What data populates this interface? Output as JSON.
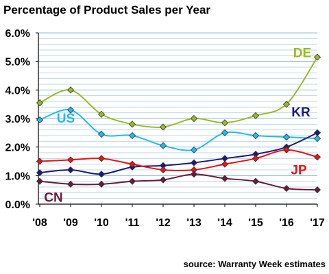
{
  "chart_data": {
    "type": "line",
    "title": "Percentage of Product Sales per Year",
    "source": "source: Warranty Week estimates",
    "categories": [
      "'08",
      "'09",
      "'10",
      "'11",
      "'12",
      "'13",
      "'14",
      "'15",
      "'16",
      "'17"
    ],
    "ylim": [
      0,
      6
    ],
    "ytick_labels": [
      "0.0%",
      "1.0%",
      "2.0%",
      "3.0%",
      "4.0%",
      "5.0%",
      "6.0%"
    ],
    "grid": true,
    "marker": "diamond",
    "series": [
      {
        "name": "DE",
        "color": "#99bb22",
        "values": [
          3.55,
          4.0,
          3.15,
          2.8,
          2.7,
          3.0,
          2.85,
          3.1,
          3.5,
          5.15
        ]
      },
      {
        "name": "US",
        "color": "#22bbee",
        "values": [
          2.95,
          3.3,
          2.45,
          2.4,
          2.05,
          1.9,
          2.5,
          2.4,
          2.35,
          2.3
        ]
      },
      {
        "name": "KR",
        "color": "#1a1a7a",
        "values": [
          1.1,
          1.2,
          1.05,
          1.3,
          1.35,
          1.45,
          1.6,
          1.75,
          2.0,
          2.5
        ]
      },
      {
        "name": "JP",
        "color": "#ee1111",
        "values": [
          1.5,
          1.55,
          1.6,
          1.4,
          1.2,
          1.2,
          1.4,
          1.6,
          1.9,
          1.65
        ]
      },
      {
        "name": "CN",
        "color": "#6b1a3a",
        "values": [
          0.8,
          0.7,
          0.7,
          0.8,
          0.85,
          1.05,
          0.9,
          0.8,
          0.55,
          0.5
        ]
      }
    ]
  }
}
